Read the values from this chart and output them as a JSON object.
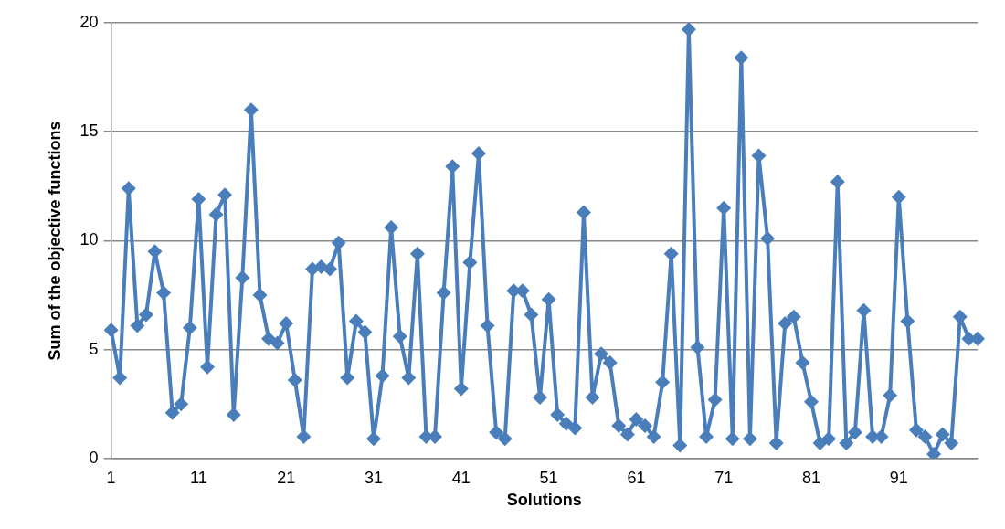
{
  "chart_data": {
    "type": "line",
    "xlabel": "Solutions",
    "ylabel": "Sum of the objective functions",
    "categories": [
      "1",
      null,
      null,
      null,
      null,
      null,
      null,
      null,
      null,
      null,
      "11",
      null,
      null,
      null,
      null,
      null,
      null,
      null,
      null,
      null,
      "21",
      null,
      null,
      null,
      null,
      null,
      null,
      null,
      null,
      null,
      "31",
      null,
      null,
      null,
      null,
      null,
      null,
      null,
      null,
      null,
      "41",
      null,
      null,
      null,
      null,
      null,
      null,
      null,
      null,
      null,
      "51",
      null,
      null,
      null,
      null,
      null,
      null,
      null,
      null,
      null,
      "61",
      null,
      null,
      null,
      null,
      null,
      null,
      null,
      null,
      null,
      "71",
      null,
      null,
      null,
      null,
      null,
      null,
      null,
      null,
      null,
      "81",
      null,
      null,
      null,
      null,
      null,
      null,
      null,
      null,
      null,
      "91",
      null,
      null,
      null,
      null,
      null,
      null,
      null,
      null,
      null
    ],
    "series": [
      {
        "color": "#4a7ebb",
        "values": [
          5.9,
          3.7,
          12.4,
          6.1,
          6.6,
          9.5,
          7.6,
          2.1,
          2.5,
          6.0,
          11.9,
          4.2,
          11.2,
          12.1,
          2.0,
          8.3,
          16.0,
          7.5,
          5.5,
          5.3,
          6.2,
          3.6,
          1.0,
          8.7,
          8.8,
          8.7,
          9.9,
          3.7,
          6.3,
          5.8,
          0.9,
          3.8,
          10.6,
          5.6,
          3.7,
          9.4,
          1.0,
          1.0,
          7.6,
          13.4,
          3.2,
          9.0,
          14.0,
          6.1,
          1.2,
          0.9,
          7.7,
          7.7,
          6.6,
          2.8,
          7.3,
          2.0,
          1.6,
          1.4,
          11.3,
          2.8,
          4.8,
          4.4,
          1.5,
          1.1,
          1.8,
          1.5,
          1.0,
          3.5,
          9.4,
          0.6,
          19.7,
          5.1,
          1.0,
          2.7,
          11.5,
          0.9,
          18.4,
          0.9,
          13.9,
          10.1,
          0.7,
          6.2,
          6.5,
          4.4,
          2.6,
          0.7,
          0.9,
          12.7,
          0.7,
          1.2,
          6.8,
          1.0,
          1.0,
          2.9,
          12.0,
          6.3,
          1.3,
          1.0,
          0.2,
          1.1,
          0.7,
          6.5,
          5.5,
          5.5
        ]
      }
    ],
    "ylim": [
      0,
      20
    ],
    "yticks": [
      0,
      5,
      10,
      15,
      20
    ],
    "grid": "y",
    "legend": false,
    "marker": "diamond",
    "line_style": "solid"
  }
}
